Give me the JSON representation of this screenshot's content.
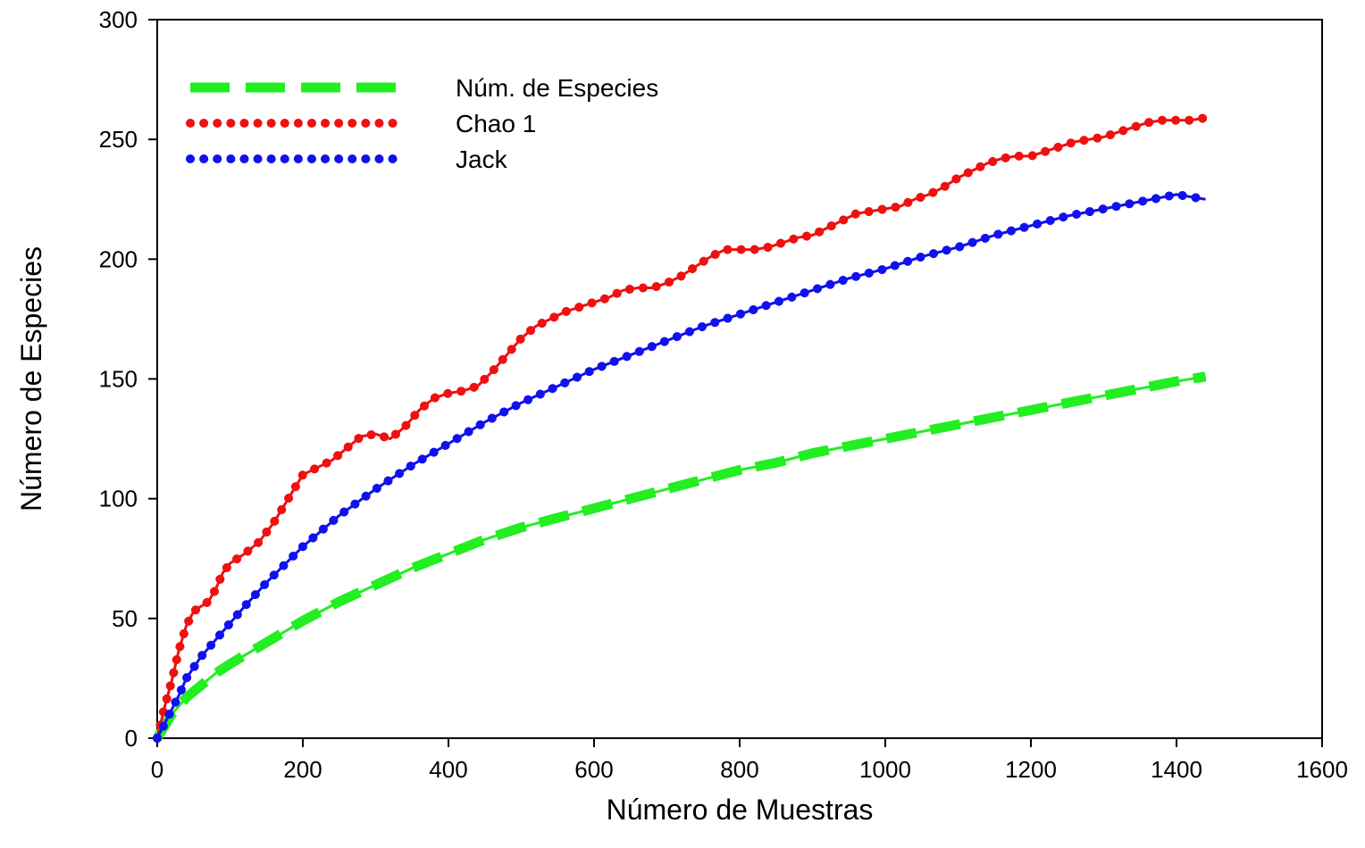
{
  "chart_data": {
    "type": "line",
    "title": "",
    "xlabel": "Número de Muestras",
    "ylabel": "Número de Especies",
    "xlim": [
      0,
      1600
    ],
    "ylim": [
      0,
      300
    ],
    "xticks": [
      "0",
      "200",
      "400",
      "600",
      "800",
      "1000",
      "1200",
      "1400",
      "1600"
    ],
    "yticks": [
      "0",
      "50",
      "100",
      "150",
      "200",
      "250",
      "300"
    ],
    "grid": false,
    "legend": "top-left",
    "series": [
      {
        "name": "Núm. de Especies",
        "color": "#22ee22",
        "style": "dashed",
        "x": [
          0,
          20,
          40,
          60,
          80,
          100,
          150,
          200,
          250,
          300,
          350,
          400,
          450,
          500,
          550,
          600,
          650,
          700,
          750,
          800,
          850,
          900,
          950,
          1000,
          1050,
          1100,
          1150,
          1200,
          1250,
          1300,
          1350,
          1400,
          1440
        ],
        "y": [
          0,
          10,
          17,
          22,
          27,
          31,
          40,
          49,
          57,
          64,
          71,
          77,
          83,
          88,
          92,
          96,
          100,
          104,
          108,
          112,
          115,
          119,
          122,
          125,
          128,
          131,
          134,
          137,
          140,
          143,
          146,
          149,
          151
        ]
      },
      {
        "name": "Chao 1",
        "color": "#ee1111",
        "style": "dotted",
        "x": [
          0,
          10,
          20,
          30,
          40,
          50,
          60,
          70,
          80,
          90,
          100,
          120,
          140,
          160,
          180,
          200,
          220,
          240,
          260,
          280,
          300,
          320,
          340,
          360,
          380,
          400,
          420,
          440,
          460,
          480,
          500,
          520,
          540,
          560,
          580,
          600,
          620,
          640,
          660,
          680,
          700,
          720,
          740,
          760,
          780,
          800,
          820,
          840,
          860,
          880,
          900,
          920,
          940,
          960,
          980,
          1000,
          1020,
          1040,
          1060,
          1080,
          1100,
          1120,
          1140,
          1160,
          1180,
          1200,
          1220,
          1240,
          1260,
          1280,
          1300,
          1320,
          1340,
          1360,
          1380,
          1400,
          1420,
          1440
        ],
        "y": [
          0,
          13,
          24,
          37,
          47,
          53,
          55,
          57,
          62,
          69,
          73,
          77,
          82,
          90,
          100,
          110,
          113,
          116,
          121,
          126,
          127,
          125,
          130,
          137,
          142,
          144,
          145,
          147,
          153,
          160,
          167,
          172,
          175,
          178,
          180,
          182,
          184,
          187,
          188,
          188,
          190,
          193,
          197,
          201,
          204,
          204,
          204,
          205,
          207,
          209,
          210,
          213,
          216,
          219,
          220,
          221,
          222,
          225,
          227,
          230,
          234,
          237,
          240,
          242,
          243,
          243,
          245,
          247,
          249,
          250,
          251,
          253,
          255,
          257,
          258,
          258,
          258,
          259
        ]
      },
      {
        "name": "Jack",
        "color": "#1111ee",
        "style": "dotted",
        "x": [
          0,
          10,
          20,
          30,
          40,
          60,
          80,
          100,
          120,
          150,
          200,
          250,
          300,
          350,
          400,
          450,
          500,
          550,
          600,
          650,
          700,
          750,
          800,
          850,
          900,
          950,
          1000,
          1050,
          1100,
          1150,
          1200,
          1250,
          1300,
          1350,
          1400,
          1440
        ],
        "y": [
          0,
          6,
          12,
          18,
          25,
          34,
          41,
          48,
          55,
          65,
          80,
          93,
          104,
          114,
          123,
          132,
          140,
          147,
          154,
          160,
          166,
          172,
          177,
          182,
          187,
          192,
          196,
          201,
          205,
          210,
          214,
          218,
          221,
          224,
          227,
          225
        ]
      }
    ]
  }
}
